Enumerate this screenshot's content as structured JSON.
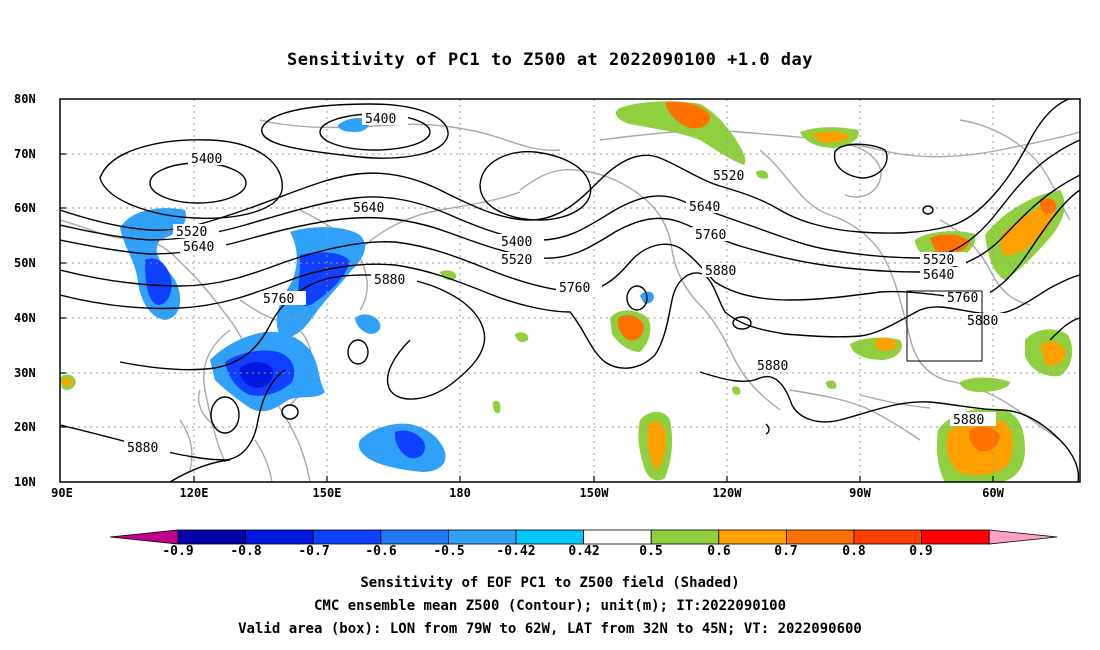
{
  "title": "Sensitivity of PC1 to Z500 at 2022090100 +1.0 day",
  "lat_labels": [
    "80N",
    "70N",
    "60N",
    "50N",
    "40N",
    "30N",
    "20N",
    "10N"
  ],
  "lon_labels": [
    "90E",
    "120E",
    "150E",
    "180",
    "150W",
    "120W",
    "90W",
    "60W"
  ],
  "contour_labels": [
    {
      "text": "5400"
    },
    {
      "text": "5400"
    },
    {
      "text": "5400"
    },
    {
      "text": "5520"
    },
    {
      "text": "5520"
    },
    {
      "text": "5520"
    },
    {
      "text": "5520"
    },
    {
      "text": "5640"
    },
    {
      "text": "5640"
    },
    {
      "text": "5640"
    },
    {
      "text": "5640"
    },
    {
      "text": "5760"
    },
    {
      "text": "5760"
    },
    {
      "text": "5760"
    },
    {
      "text": "5760"
    },
    {
      "text": "5880"
    },
    {
      "text": "5880"
    },
    {
      "text": "5880"
    },
    {
      "text": "5880"
    },
    {
      "text": "5880"
    },
    {
      "text": "5880"
    }
  ],
  "colorbar": {
    "labels": [
      "-0.9",
      "-0.8",
      "-0.7",
      "-0.6",
      "-0.5",
      "-0.42",
      "0.42",
      "0.5",
      "0.6",
      "0.7",
      "0.8",
      "0.9"
    ],
    "colors": [
      "#c0008c",
      "#0000a8",
      "#0018e0",
      "#1040ff",
      "#2078f8",
      "#30a0f8",
      "#00c8ff",
      "#ffffff",
      "#90d040",
      "#ffa000",
      "#ff7000",
      "#ff4000",
      "#ff0000",
      "#ffa0c8"
    ]
  },
  "captions": {
    "line1": "Sensitivity of EOF PC1 to Z500 field (Shaded)",
    "line2": "CMC ensemble mean Z500 (Contour); unit(m); IT:2022090100",
    "line3": "Valid area (box): LON from 79W to 62W, LAT from 32N to 45N; VT: 2022090600"
  },
  "valid_box": {
    "lon_from": "79W",
    "lon_to": "62W",
    "lat_from": "32N",
    "lat_to": "45N"
  }
}
